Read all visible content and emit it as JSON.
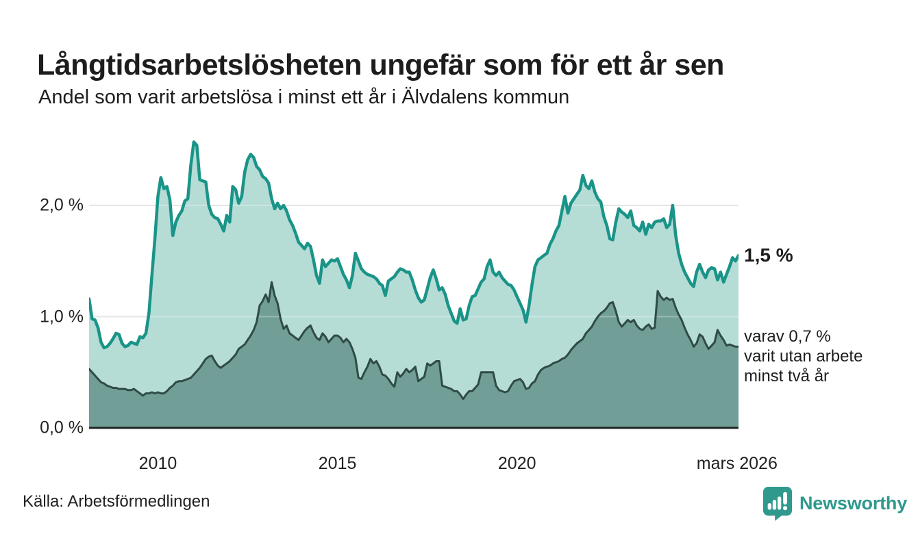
{
  "header": {
    "title": "Långtidsarbetslösheten ungefär som för ett år sen",
    "subtitle": "Andel som varit arbetslösa i minst ett år i Älvdalens kommun"
  },
  "annotations": {
    "series1_end_label": "1,5 %",
    "series2_end_line1": "varav 0,7 %",
    "series2_end_line2": "varit utan arbete",
    "series2_end_line3": "minst två år"
  },
  "footer": {
    "source": "Källa: Arbetsförmedlingen",
    "logo_text": "Newsworthy"
  },
  "colors": {
    "long_term_line": "#1a9488",
    "long_term_fill": "#b6dcd6",
    "very_long_term_line": "#2f4b47",
    "very_long_term_fill": "#719e96",
    "gridline": "#dddddd",
    "gridline_overlay": "#ffffff",
    "baseline": "#1f2724",
    "text": "#1d1d1d",
    "logo": "#2f998d"
  },
  "chart_data": {
    "type": "area",
    "title": "Långtidsarbetslösheten ungefär som för ett år sen",
    "subtitle": "Andel som varit arbetslösa i minst ett år i Älvdalens kommun",
    "unit": "%",
    "frequency": "monthly",
    "x_start": {
      "year": 2008,
      "month": 2
    },
    "x_end": {
      "year": 2026,
      "month": 3
    },
    "ylim": [
      0,
      2.7
    ],
    "grid": "horizontal",
    "y_ticks": [
      {
        "label": "0,0 %",
        "value": 0
      },
      {
        "label": "1,0 %",
        "value": 1
      },
      {
        "label": "2,0 %",
        "value": 2
      }
    ],
    "x_ticks": [
      {
        "label": "2010",
        "t": 2010
      },
      {
        "label": "2015",
        "t": 2015
      },
      {
        "label": "2020",
        "t": 2020
      },
      {
        "label": "mars 2026",
        "t": 2026.125
      }
    ],
    "series": [
      {
        "name": "Andel arbetslösa minst ett år",
        "end_label": "1,5 %",
        "line_color": "#1a9488",
        "fill_color": "#b6dcd6",
        "values": [
          1.16,
          0.98,
          0.97,
          0.9,
          0.77,
          0.72,
          0.73,
          0.76,
          0.8,
          0.85,
          0.84,
          0.76,
          0.73,
          0.74,
          0.77,
          0.76,
          0.75,
          0.82,
          0.81,
          0.85,
          1.03,
          1.37,
          1.7,
          2.08,
          2.25,
          2.15,
          2.17,
          2.05,
          1.73,
          1.85,
          1.91,
          1.95,
          2.04,
          2.06,
          2.36,
          2.57,
          2.54,
          2.23,
          2.22,
          2.21,
          2.0,
          1.92,
          1.89,
          1.88,
          1.83,
          1.77,
          1.91,
          1.85,
          2.17,
          2.14,
          2.02,
          2.08,
          2.3,
          2.41,
          2.46,
          2.43,
          2.35,
          2.32,
          2.26,
          2.24,
          2.2,
          2.06,
          1.97,
          2.02,
          1.97,
          2.0,
          1.95,
          1.87,
          1.82,
          1.75,
          1.67,
          1.64,
          1.61,
          1.66,
          1.63,
          1.51,
          1.37,
          1.3,
          1.51,
          1.45,
          1.48,
          1.51,
          1.5,
          1.52,
          1.45,
          1.38,
          1.33,
          1.26,
          1.37,
          1.57,
          1.5,
          1.43,
          1.4,
          1.38,
          1.37,
          1.36,
          1.34,
          1.3,
          1.28,
          1.19,
          1.32,
          1.34,
          1.36,
          1.4,
          1.43,
          1.42,
          1.4,
          1.4,
          1.33,
          1.24,
          1.17,
          1.13,
          1.15,
          1.25,
          1.35,
          1.42,
          1.34,
          1.24,
          1.26,
          1.2,
          1.1,
          1.03,
          0.96,
          0.94,
          1.07,
          0.97,
          0.98,
          1.1,
          1.18,
          1.19,
          1.25,
          1.31,
          1.34,
          1.45,
          1.51,
          1.4,
          1.37,
          1.4,
          1.35,
          1.32,
          1.29,
          1.28,
          1.24,
          1.18,
          1.12,
          1.06,
          0.95,
          1.1,
          1.29,
          1.45,
          1.51,
          1.53,
          1.55,
          1.57,
          1.65,
          1.7,
          1.77,
          1.82,
          1.95,
          2.08,
          1.93,
          2.02,
          2.06,
          2.1,
          2.14,
          2.27,
          2.18,
          2.15,
          2.22,
          2.12,
          2.06,
          2.03,
          1.9,
          1.82,
          1.7,
          1.69,
          1.85,
          1.97,
          1.94,
          1.92,
          1.89,
          1.95,
          1.82,
          1.8,
          1.77,
          1.85,
          1.74,
          1.83,
          1.8,
          1.85,
          1.86,
          1.86,
          1.88,
          1.8,
          1.83,
          2.0,
          1.73,
          1.57,
          1.47,
          1.4,
          1.35,
          1.3,
          1.27,
          1.4,
          1.47,
          1.4,
          1.35,
          1.42,
          1.44,
          1.43,
          1.33,
          1.4,
          1.31,
          1.38,
          1.45,
          1.53,
          1.5,
          1.55
        ]
      },
      {
        "name": "varav utan arbete minst två år",
        "end_label": "varav 0,7 % varit utan arbete minst två år",
        "line_color": "#2f4b47",
        "fill_color": "#719e96",
        "values": [
          0.53,
          0.5,
          0.47,
          0.44,
          0.41,
          0.4,
          0.38,
          0.37,
          0.36,
          0.36,
          0.35,
          0.35,
          0.35,
          0.34,
          0.34,
          0.35,
          0.33,
          0.31,
          0.29,
          0.31,
          0.31,
          0.32,
          0.31,
          0.32,
          0.31,
          0.31,
          0.33,
          0.36,
          0.38,
          0.41,
          0.42,
          0.42,
          0.43,
          0.44,
          0.45,
          0.48,
          0.51,
          0.54,
          0.58,
          0.62,
          0.64,
          0.65,
          0.6,
          0.56,
          0.54,
          0.56,
          0.58,
          0.6,
          0.63,
          0.66,
          0.71,
          0.73,
          0.75,
          0.79,
          0.83,
          0.88,
          0.95,
          1.1,
          1.14,
          1.2,
          1.13,
          1.31,
          1.19,
          1.12,
          0.98,
          0.89,
          0.92,
          0.85,
          0.83,
          0.81,
          0.79,
          0.83,
          0.87,
          0.9,
          0.92,
          0.86,
          0.81,
          0.79,
          0.85,
          0.82,
          0.77,
          0.8,
          0.83,
          0.83,
          0.81,
          0.77,
          0.8,
          0.77,
          0.71,
          0.63,
          0.45,
          0.44,
          0.5,
          0.55,
          0.62,
          0.58,
          0.6,
          0.55,
          0.48,
          0.47,
          0.44,
          0.4,
          0.37,
          0.5,
          0.46,
          0.49,
          0.53,
          0.5,
          0.52,
          0.55,
          0.42,
          0.44,
          0.46,
          0.58,
          0.56,
          0.58,
          0.6,
          0.6,
          0.38,
          0.37,
          0.36,
          0.35,
          0.33,
          0.33,
          0.3,
          0.26,
          0.3,
          0.33,
          0.33,
          0.36,
          0.39,
          0.5,
          0.5,
          0.5,
          0.5,
          0.5,
          0.38,
          0.34,
          0.33,
          0.32,
          0.33,
          0.38,
          0.42,
          0.43,
          0.44,
          0.41,
          0.35,
          0.36,
          0.4,
          0.42,
          0.48,
          0.52,
          0.54,
          0.55,
          0.56,
          0.58,
          0.59,
          0.6,
          0.62,
          0.63,
          0.66,
          0.7,
          0.73,
          0.76,
          0.78,
          0.8,
          0.85,
          0.88,
          0.91,
          0.96,
          1.0,
          1.03,
          1.05,
          1.08,
          1.12,
          1.13,
          1.05,
          0.95,
          0.91,
          0.94,
          0.97,
          0.95,
          0.97,
          0.92,
          0.89,
          0.88,
          0.91,
          0.93,
          0.89,
          0.9,
          1.23,
          1.18,
          1.15,
          1.17,
          1.15,
          1.16,
          1.08,
          1.02,
          0.97,
          0.9,
          0.84,
          0.79,
          0.73,
          0.76,
          0.84,
          0.82,
          0.76,
          0.71,
          0.74,
          0.77,
          0.88,
          0.83,
          0.79,
          0.74,
          0.75,
          0.74,
          0.73,
          0.73
        ]
      }
    ]
  }
}
